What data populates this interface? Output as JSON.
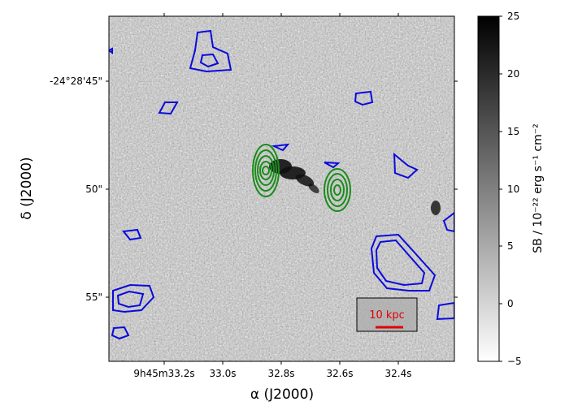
{
  "x_axis": {
    "title": "α (J2000)",
    "ticks": [
      "9h45m33.2s",
      "33.0s",
      "32.8s",
      "32.6s",
      "32.4s"
    ]
  },
  "y_axis": {
    "title": "δ (J2000)",
    "ticks": [
      "-24°28'45\"",
      "50\"",
      "55\""
    ]
  },
  "colorbar": {
    "label": "SB / 10⁻²² erg s⁻¹ cm⁻²",
    "min": -5,
    "max": 25,
    "ticks": [
      "25",
      "20",
      "15",
      "10",
      "5",
      "0",
      "−5"
    ],
    "colormap": "gray_r"
  },
  "scalebar": {
    "label": "10 kpc",
    "color": "#e00000"
  },
  "contours": {
    "blue_color": "#0a0adc",
    "green_color": "#1a8c1a"
  }
}
